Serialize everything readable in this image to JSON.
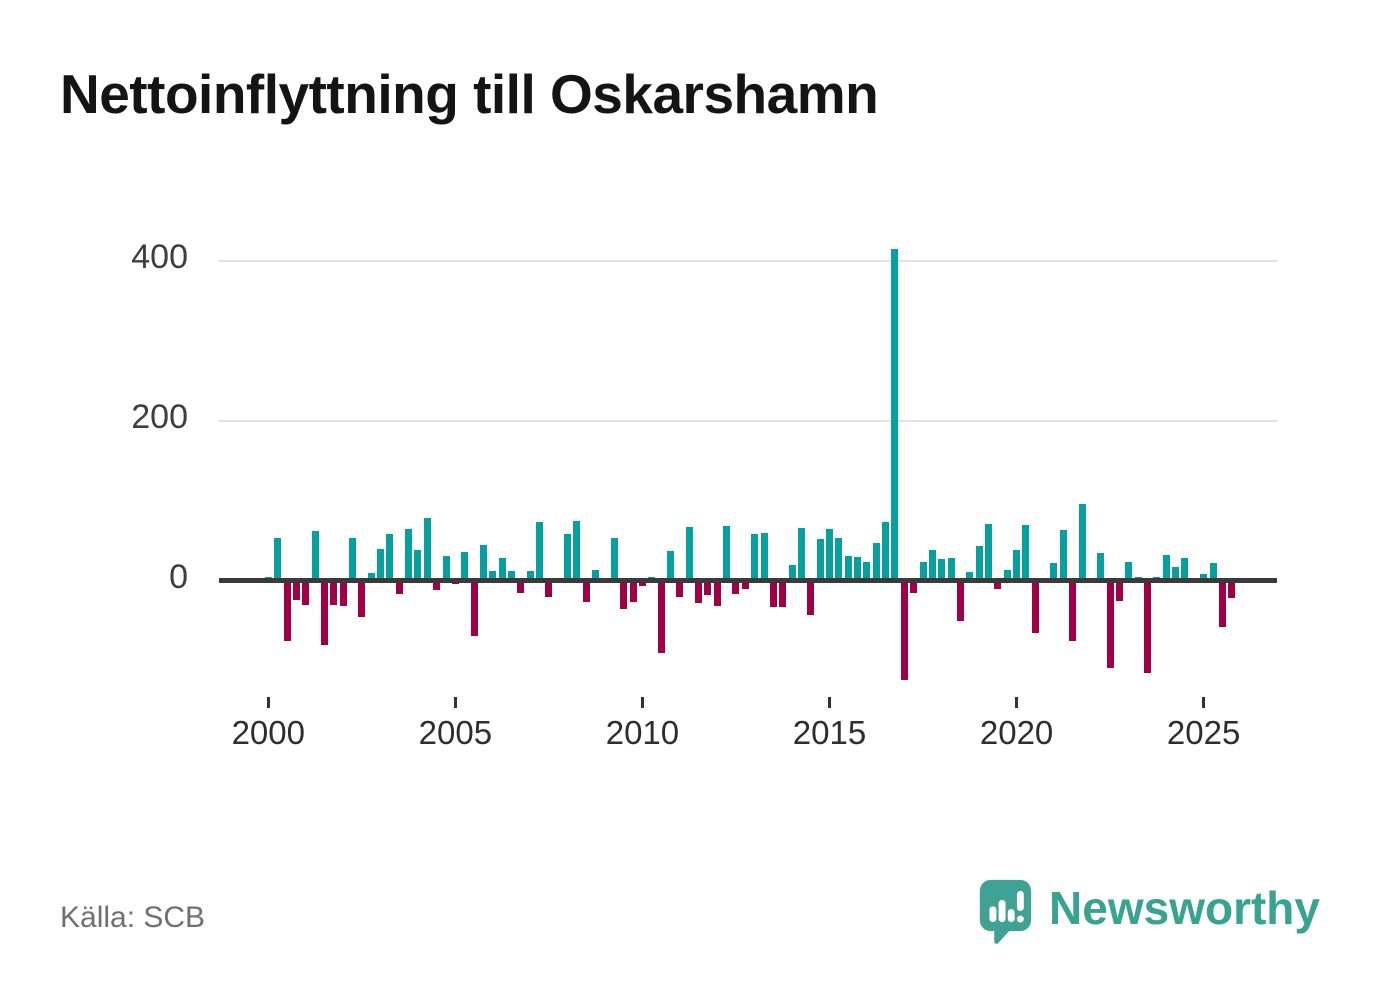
{
  "header": {
    "title": "Nettoinflyttning till Oskarshamn"
  },
  "footer": {
    "source": "Källa: SCB",
    "brand": "Newsworthy"
  },
  "colors": {
    "positive": "#08a09e",
    "negative": "#a00046",
    "axis": "#3a3a3a",
    "gridline": "#e2e2e2",
    "brand_teal": "#40a294"
  },
  "chart_data": {
    "type": "bar",
    "title": "Nettoinflyttning till Oskarshamn",
    "source": "Källa: SCB",
    "x_unit": "quarter",
    "grid": "horizontal",
    "legend": "none",
    "ylim": [
      -140,
      440
    ],
    "yticks": [
      0,
      200,
      400
    ],
    "xticks": [
      2000,
      2005,
      2010,
      2015,
      2020,
      2025
    ],
    "positive_color": "#08a09e",
    "negative_color": "#a00046",
    "quarters": [
      "2000-Q1",
      "2000-Q2",
      "2000-Q3",
      "2000-Q4",
      "2001-Q1",
      "2001-Q2",
      "2001-Q3",
      "2001-Q4",
      "2002-Q1",
      "2002-Q2",
      "2002-Q3",
      "2002-Q4",
      "2003-Q1",
      "2003-Q2",
      "2003-Q3",
      "2003-Q4",
      "2004-Q1",
      "2004-Q2",
      "2004-Q3",
      "2004-Q4",
      "2005-Q1",
      "2005-Q2",
      "2005-Q3",
      "2005-Q4",
      "2006-Q1",
      "2006-Q2",
      "2006-Q3",
      "2006-Q4",
      "2007-Q1",
      "2007-Q2",
      "2007-Q3",
      "2007-Q4",
      "2008-Q1",
      "2008-Q2",
      "2008-Q3",
      "2008-Q4",
      "2009-Q1",
      "2009-Q2",
      "2009-Q3",
      "2009-Q4",
      "2010-Q1",
      "2010-Q2",
      "2010-Q3",
      "2010-Q4",
      "2011-Q1",
      "2011-Q2",
      "2011-Q3",
      "2011-Q4",
      "2012-Q1",
      "2012-Q2",
      "2012-Q3",
      "2012-Q4",
      "2013-Q1",
      "2013-Q2",
      "2013-Q3",
      "2013-Q4",
      "2014-Q1",
      "2014-Q2",
      "2014-Q3",
      "2014-Q4",
      "2015-Q1",
      "2015-Q2",
      "2015-Q3",
      "2015-Q4",
      "2016-Q1",
      "2016-Q2",
      "2016-Q3",
      "2016-Q4",
      "2017-Q1",
      "2017-Q2",
      "2017-Q3",
      "2017-Q4",
      "2018-Q1",
      "2018-Q2",
      "2018-Q3",
      "2018-Q4",
      "2019-Q1",
      "2019-Q2",
      "2019-Q3",
      "2019-Q4",
      "2020-Q1",
      "2020-Q2",
      "2020-Q3",
      "2020-Q4",
      "2021-Q1",
      "2021-Q2",
      "2021-Q3",
      "2021-Q4",
      "2022-Q1",
      "2022-Q2",
      "2022-Q3",
      "2022-Q4",
      "2023-Q1",
      "2023-Q2",
      "2023-Q3",
      "2023-Q4",
      "2024-Q1",
      "2024-Q2",
      "2024-Q3",
      "2024-Q4",
      "2025-Q1",
      "2025-Q2",
      "2025-Q3",
      "2025-Q4"
    ],
    "values": [
      5,
      53,
      -75,
      -24,
      -30,
      62,
      -80,
      -31,
      -32,
      53,
      -46,
      9,
      39,
      58,
      -17,
      64,
      38,
      78,
      -12,
      31,
      -4,
      36,
      -69,
      45,
      12,
      28,
      12,
      -15,
      12,
      73,
      -20,
      0,
      58,
      74,
      -27,
      13,
      0,
      53,
      -36,
      -27,
      -7,
      4,
      -91,
      37,
      -21,
      67,
      -28,
      -18,
      -32,
      68,
      -17,
      -11,
      58,
      60,
      -33,
      -33,
      20,
      66,
      -43,
      52,
      65,
      53,
      31,
      29,
      23,
      47,
      73,
      415,
      -124,
      -16,
      23,
      38,
      27,
      28,
      -51,
      11,
      43,
      71,
      -11,
      13,
      38,
      70,
      -66,
      3,
      22,
      63,
      -76,
      96,
      0,
      35,
      -109,
      -25,
      23,
      4,
      -115,
      5,
      32,
      17,
      28,
      0,
      8,
      22,
      -58,
      -22
    ]
  }
}
